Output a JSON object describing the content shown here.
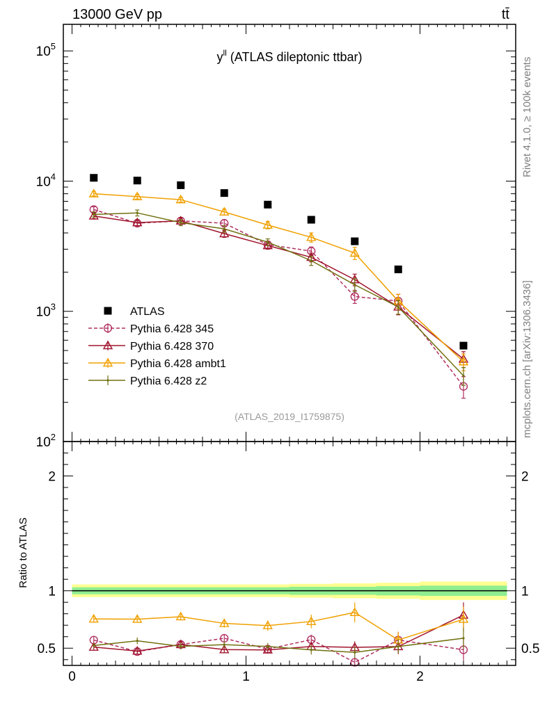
{
  "header": {
    "left_label": "13000 GeV pp",
    "right_label": "tt̄",
    "side_label_top": "Rivet 4.1.0, ≥ 100k events",
    "side_label_bottom": "mcplots.cern.ch [arXiv:1306.3436]"
  },
  "chart_data": {
    "type": "line",
    "title_main": "y",
    "title_sup": "ll",
    "title_rest": " (ATLAS dileptonic ttbar)",
    "analysis_label": "(ATLAS_2019_I1759875)",
    "ratio_ylabel": "Ratio to ATLAS",
    "ylim_main": [
      100,
      160000
    ],
    "ylim_ratio": [
      0.35,
      2.3
    ],
    "xlim": [
      -0.05,
      2.55
    ],
    "x_ticks": [
      "0",
      "1",
      "2"
    ],
    "main_y_ticks": [
      {
        "exp": "2",
        "value": 100
      },
      {
        "exp": "3",
        "value": 1000
      },
      {
        "exp": "4",
        "value": 10000
      },
      {
        "exp": "5",
        "value": 100000
      }
    ],
    "ratio_y_ticks": [
      "0.5",
      "1",
      "2"
    ],
    "bins": [
      [
        0,
        0.25
      ],
      [
        0.25,
        0.5
      ],
      [
        0.5,
        0.75
      ],
      [
        0.75,
        1.0
      ],
      [
        1.0,
        1.25
      ],
      [
        1.25,
        1.5
      ],
      [
        1.5,
        1.75
      ],
      [
        1.75,
        2.0
      ],
      [
        2.0,
        2.5
      ]
    ],
    "x": [
      0.125,
      0.375,
      0.625,
      0.875,
      1.125,
      1.375,
      1.625,
      1.875,
      2.25
    ],
    "data": {
      "name": "ATLAS",
      "values": [
        10600,
        10100,
        9300,
        8100,
        6600,
        5050,
        3450,
        2100,
        545
      ],
      "band_inner": [
        0.03,
        0.03,
        0.03,
        0.03,
        0.03,
        0.035,
        0.035,
        0.04,
        0.045
      ],
      "band_outer": [
        0.055,
        0.055,
        0.055,
        0.055,
        0.055,
        0.06,
        0.065,
        0.07,
        0.08
      ]
    },
    "series": [
      {
        "name": "Pythia 6.428 345",
        "color": "#b03060",
        "marker": "circle",
        "dashed": true,
        "values": [
          6050,
          4750,
          4950,
          4750,
          3250,
          2900,
          1300,
          1200,
          265
        ],
        "errors": [
          300,
          250,
          280,
          300,
          200,
          220,
          150,
          150,
          50
        ]
      },
      {
        "name": "Pythia 6.428 370",
        "color": "#a0142c",
        "marker": "triangle",
        "dashed": false,
        "values": [
          5400,
          4800,
          4950,
          3950,
          3200,
          2600,
          1750,
          1080,
          430
        ],
        "errors": [
          250,
          250,
          280,
          250,
          200,
          200,
          180,
          140,
          60
        ]
      },
      {
        "name": "Pythia 6.428 ambt1",
        "color": "#f0a000",
        "marker": "triangle",
        "dashed": false,
        "values": [
          8000,
          7600,
          7200,
          5800,
          4600,
          3700,
          2800,
          1200,
          410
        ],
        "errors": [
          300,
          300,
          300,
          300,
          300,
          300,
          300,
          150,
          60
        ]
      },
      {
        "name": "Pythia 6.428 z2",
        "color": "#707010",
        "marker": "dot",
        "dashed": false,
        "values": [
          5550,
          5700,
          4800,
          4300,
          3400,
          2450,
          1600,
          1080,
          320
        ],
        "errors": [
          250,
          300,
          250,
          250,
          200,
          200,
          180,
          130,
          50
        ]
      }
    ]
  }
}
